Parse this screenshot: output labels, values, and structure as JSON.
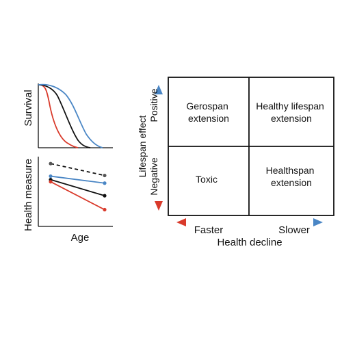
{
  "left_panels": {
    "survival": {
      "ylabel": "Survival",
      "curves": [
        {
          "color": "#d93a2b",
          "role": "faster decline"
        },
        {
          "color": "#111111",
          "role": "reference"
        },
        {
          "color": "#4a86c5",
          "role": "slower decline"
        }
      ]
    },
    "health": {
      "ylabel": "Health measure",
      "xlabel": "Age",
      "lines": [
        {
          "color": "#555555",
          "style": "dashed",
          "start": 0.9,
          "end": 0.73
        },
        {
          "color": "#4a86c5",
          "style": "solid",
          "start": 0.72,
          "end": 0.62
        },
        {
          "color": "#111111",
          "style": "solid",
          "start": 0.67,
          "end": 0.44
        },
        {
          "color": "#d93a2b",
          "style": "solid",
          "start": 0.64,
          "end": 0.24
        }
      ]
    }
  },
  "matrix": {
    "cells": {
      "top_left": [
        "Gerospan",
        "extension"
      ],
      "top_right": [
        "Healthy lifespan",
        "extension"
      ],
      "bottom_left": [
        "Toxic"
      ],
      "bottom_right": [
        "Healthspan",
        "extension"
      ]
    },
    "y_axis": {
      "title": "Lifespan effect",
      "positive": "Positive",
      "negative": "Negative",
      "colors": {
        "positive": "#4a86c5",
        "negative": "#d93a2b",
        "mid": "#f0d060"
      }
    },
    "x_axis": {
      "title": "Health decline",
      "faster": "Faster",
      "slower": "Slower",
      "colors": {
        "faster": "#d93a2b",
        "slower": "#4a86c5",
        "mid": "#f0d060"
      }
    }
  }
}
